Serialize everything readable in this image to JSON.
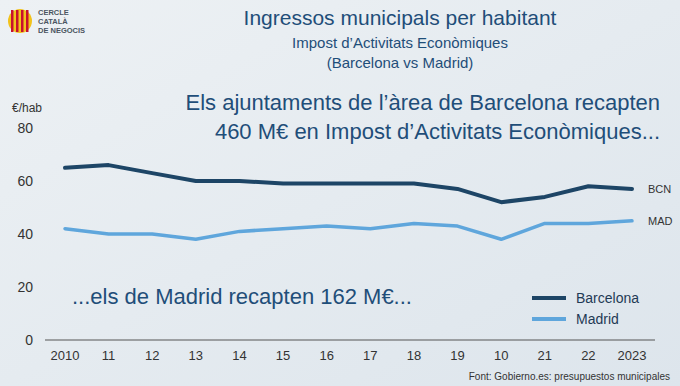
{
  "chart_data": {
    "type": "line",
    "title": "Ingressos municipals per habitant",
    "subtitle": [
      "Impost d’Activitats Econòmiques",
      "(Barcelona vs Madrid)"
    ],
    "logo": [
      "CERCLE",
      "CATALÀ",
      "DE NEGOCIS"
    ],
    "y_label": "€/hab",
    "annotations": [
      "Els ajuntaments de l’àrea de Barcelona recapten",
      "460 M€ en Impost d’Activitats Econòmiques...",
      "...els de Madrid recapten 162 M€..."
    ],
    "source": "Font: Gobierno.es: presupuestos municipales",
    "categories": [
      "2010",
      "11",
      "12",
      "13",
      "14",
      "15",
      "16",
      "17",
      "18",
      "19",
      "10",
      "21",
      "22",
      "2023"
    ],
    "series": [
      {
        "name": "Barcelona",
        "end_label": "BCN",
        "color": "#1d4566",
        "values": [
          65,
          66,
          63,
          60,
          60,
          59,
          59,
          59,
          59,
          57,
          52,
          54,
          58,
          57
        ]
      },
      {
        "name": "Madrid",
        "end_label": "MAD",
        "color": "#5fa6dc",
        "values": [
          42,
          40,
          40,
          38,
          41,
          42,
          43,
          42,
          44,
          43,
          38,
          44,
          44,
          45
        ]
      }
    ],
    "ylim": [
      0,
      80
    ],
    "yticks": [
      0,
      20,
      40,
      60,
      80
    ],
    "grid": false,
    "legend": "bottom-right"
  }
}
